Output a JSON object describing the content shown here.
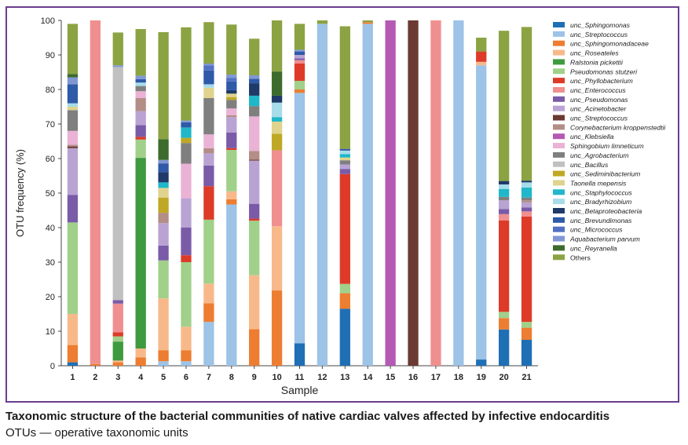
{
  "caption": {
    "title": "Taxonomic structure of the bacterial communities of native cardiac valves affected by infective endocarditis",
    "subtitle": "OTUs — operative taxonomic units"
  },
  "chart_data": {
    "type": "bar",
    "stacked": true,
    "title": "",
    "xlabel": "Sample",
    "ylabel": "OTU frequency (%)",
    "ylim": [
      0,
      100
    ],
    "yticks": [
      0,
      10,
      20,
      30,
      40,
      50,
      60,
      70,
      80,
      90,
      100
    ],
    "grid": false,
    "legend_position": "right",
    "categories": [
      "1",
      "2",
      "3",
      "4",
      "5",
      "6",
      "7",
      "8",
      "9",
      "10",
      "11",
      "12",
      "13",
      "14",
      "15",
      "16",
      "17",
      "18",
      "19",
      "20",
      "21"
    ],
    "series": [
      {
        "name": "unc_Sphingomonas",
        "color": "#1f6fb5",
        "italic": true,
        "values": [
          1,
          0,
          0,
          0,
          0,
          0,
          0,
          0,
          0,
          0,
          6.5,
          0,
          16.5,
          0,
          0,
          0,
          0,
          0,
          1.8,
          10.5,
          7.5
        ]
      },
      {
        "name": "unc_Streptococcus",
        "color": "#9dc3e6",
        "italic": true,
        "values": [
          0,
          0,
          0,
          0,
          1.3,
          1.3,
          12.7,
          46.7,
          0,
          0,
          72.5,
          99,
          0,
          99,
          0,
          0,
          0,
          100,
          85.2,
          0,
          0
        ]
      },
      {
        "name": "unc_Sphingomonadaceae",
        "color": "#ed7d31",
        "italic": true,
        "values": [
          5,
          0.5,
          1,
          2.4,
          3.2,
          3.2,
          5.4,
          1.5,
          10.6,
          21.8,
          1,
          0,
          4.5,
          0.5,
          0,
          0,
          0,
          0,
          0,
          3.3,
          3.5
        ]
      },
      {
        "name": "unc_Roseateles",
        "color": "#f8b98a",
        "italic": true,
        "values": [
          9,
          0,
          0.5,
          2.6,
          15,
          6.8,
          5.7,
          2.3,
          15.6,
          18.6,
          0,
          0,
          0,
          0,
          0,
          0,
          0,
          0,
          1,
          0,
          0
        ]
      },
      {
        "name": "Ralstonia pickettii",
        "color": "#3e9a3e",
        "italic": true,
        "values": [
          0,
          0,
          5.5,
          55.2,
          0,
          0,
          0,
          0,
          0,
          0,
          0,
          0,
          0,
          0,
          0,
          0,
          0,
          0,
          0,
          0,
          0
        ]
      },
      {
        "name": "Pseudomonas stutzeri",
        "color": "#a1d08a",
        "italic": true,
        "values": [
          26.5,
          0,
          1.5,
          5.3,
          11,
          18.7,
          18.5,
          12,
          15.8,
          0,
          2.5,
          0,
          2.7,
          0,
          0,
          0,
          0,
          0,
          0,
          1.8,
          1.7
        ]
      },
      {
        "name": "unc_Phyllobacterium",
        "color": "#dd3b28",
        "italic": true,
        "values": [
          0,
          0,
          1.2,
          0.8,
          0,
          2,
          9.7,
          0.5,
          0.6,
          0,
          5,
          0,
          31.8,
          0,
          0,
          0,
          0,
          0,
          3,
          26.5,
          30.5
        ]
      },
      {
        "name": "unc_Enterococcus",
        "color": "#f08f8f",
        "italic": true,
        "values": [
          0,
          99.5,
          8.3,
          0,
          0,
          0,
          0,
          0,
          0,
          22,
          1,
          0,
          0,
          0,
          0,
          0,
          100,
          0,
          0,
          1.8,
          1.5
        ]
      },
      {
        "name": "unc_Pseudomonas",
        "color": "#7a5ba8",
        "italic": true,
        "values": [
          8,
          0,
          1,
          3.4,
          4.3,
          8,
          6,
          4.5,
          4.3,
          0,
          0.5,
          0,
          1.5,
          0,
          0,
          0,
          0,
          0,
          0,
          1.5,
          1.1
        ]
      },
      {
        "name": "unc_Acinetobacter",
        "color": "#b9a3d3",
        "italic": true,
        "values": [
          13.5,
          0,
          0,
          4,
          6.5,
          8.5,
          3.5,
          4.5,
          12.5,
          0,
          1,
          0,
          1.3,
          0,
          0,
          0,
          0,
          0,
          0,
          2.5,
          1.5
        ]
      },
      {
        "name": "unc_Streptococcus",
        "color": "#6b3a32",
        "italic": true,
        "values": [
          0.5,
          0,
          0,
          0,
          0,
          0,
          0,
          0,
          0.3,
          0,
          0,
          0,
          0,
          0,
          0,
          100,
          0,
          0,
          0,
          0,
          0
        ]
      },
      {
        "name": "Corynebacterium kroppenstedtii",
        "color": "#b38e86",
        "italic": true,
        "values": [
          0.5,
          0,
          0,
          3.8,
          3,
          0,
          1.5,
          0.5,
          2.5,
          0,
          0,
          0,
          0,
          0,
          0,
          0,
          0,
          0,
          0,
          0,
          0.6
        ]
      },
      {
        "name": "unc_Klebsiella",
        "color": "#b459b4",
        "italic": true,
        "values": [
          0,
          0,
          0,
          0,
          0,
          0,
          0,
          0,
          0,
          0,
          0,
          0,
          0,
          0,
          100,
          0,
          0,
          0,
          0,
          0,
          0
        ]
      },
      {
        "name": "Sphingobium limneticum",
        "color": "#eab2d5",
        "italic": true,
        "values": [
          4,
          0,
          0,
          2,
          0,
          10,
          4,
          2,
          10,
          0,
          0,
          0,
          0,
          0,
          0,
          0,
          0,
          0,
          0,
          0,
          0
        ]
      },
      {
        "name": "unc_Agrobacterium",
        "color": "#7f7f7f",
        "italic": true,
        "values": [
          6,
          0,
          0,
          1.5,
          0,
          6,
          10.5,
          2.5,
          3,
          0,
          0,
          0,
          1.2,
          0,
          0,
          0,
          0,
          0,
          0,
          1,
          0.8
        ]
      },
      {
        "name": "unc_Bacillus",
        "color": "#c0c0c0",
        "italic": true,
        "values": [
          0,
          0,
          67.5,
          0,
          0,
          0,
          0,
          0,
          0,
          0,
          0,
          0,
          0,
          0,
          0,
          0,
          0,
          0,
          0,
          0,
          0
        ]
      },
      {
        "name": "unc_Sediminibacterium",
        "color": "#bfa825",
        "italic": true,
        "values": [
          0,
          0,
          0,
          0,
          4.4,
          1.5,
          0,
          0.8,
          0,
          4.8,
          0,
          0,
          0,
          0,
          0,
          0,
          0,
          0,
          0,
          0,
          0
        ]
      },
      {
        "name": "Taonella mepensis",
        "color": "#dfd38e",
        "italic": true,
        "values": [
          1,
          0,
          0,
          0,
          2.8,
          0,
          3,
          1,
          0,
          3.5,
          0,
          0,
          0.8,
          0,
          0,
          0,
          0,
          0,
          0,
          0,
          0
        ]
      },
      {
        "name": "unc_Staphylococcus",
        "color": "#1fb7c9",
        "italic": true,
        "values": [
          0,
          0,
          0,
          0,
          1.6,
          3,
          0,
          0,
          3,
          1.3,
          0,
          0,
          1,
          0,
          0,
          0,
          0,
          0,
          0,
          2.3,
          2.9
        ]
      },
      {
        "name": "unc_Bradyrhizobium",
        "color": "#a7dcea",
        "italic": true,
        "values": [
          1,
          0,
          0,
          1,
          0,
          0,
          1,
          0,
          0,
          4.2,
          0,
          0,
          1,
          0,
          0,
          0,
          0,
          0,
          0,
          1.3,
          1.5
        ]
      },
      {
        "name": "unc_Betaproteobacteria",
        "color": "#1f3a68",
        "italic": true,
        "values": [
          0,
          0,
          0,
          0,
          3,
          0,
          0,
          1,
          3.6,
          2,
          0,
          0,
          0,
          0,
          0,
          0,
          0,
          0,
          0,
          1,
          0.5
        ]
      },
      {
        "name": "unc_Brevundimonas",
        "color": "#2e5aa8",
        "italic": true,
        "values": [
          5.5,
          0,
          0,
          1,
          2.5,
          1.5,
          4,
          2.5,
          1.3,
          0,
          1,
          0,
          0.5,
          0,
          0,
          0,
          0,
          0,
          0,
          0,
          0
        ]
      },
      {
        "name": "unc_Micrococcus",
        "color": "#5271c4",
        "italic": true,
        "values": [
          0,
          0,
          0,
          0,
          0,
          0,
          1.5,
          1,
          0,
          0,
          0,
          0,
          0,
          0,
          0,
          0,
          0,
          0,
          0,
          0,
          0
        ]
      },
      {
        "name": "Aquabacterium parvum",
        "color": "#8097d4",
        "italic": true,
        "values": [
          2,
          0,
          0.5,
          1,
          1,
          0.5,
          0.5,
          1,
          1,
          0,
          0.5,
          0,
          0,
          0,
          0,
          0,
          0,
          0,
          0,
          0,
          0
        ]
      },
      {
        "name": "unc_Reyranella",
        "color": "#3d6b2d",
        "italic": true,
        "values": [
          1,
          0,
          0,
          0,
          6,
          0,
          0,
          0,
          0,
          7,
          0,
          0,
          0,
          0,
          0,
          0,
          0,
          0,
          0,
          0,
          0
        ]
      },
      {
        "name": "Others",
        "color": "#8ba342",
        "italic": false,
        "values": [
          14.5,
          0,
          9.5,
          13.5,
          31,
          27,
          12,
          14.5,
          10.6,
          15,
          7.5,
          1,
          35.5,
          0.5,
          0,
          0,
          0,
          0,
          4,
          43.5,
          44.5
        ]
      }
    ]
  }
}
